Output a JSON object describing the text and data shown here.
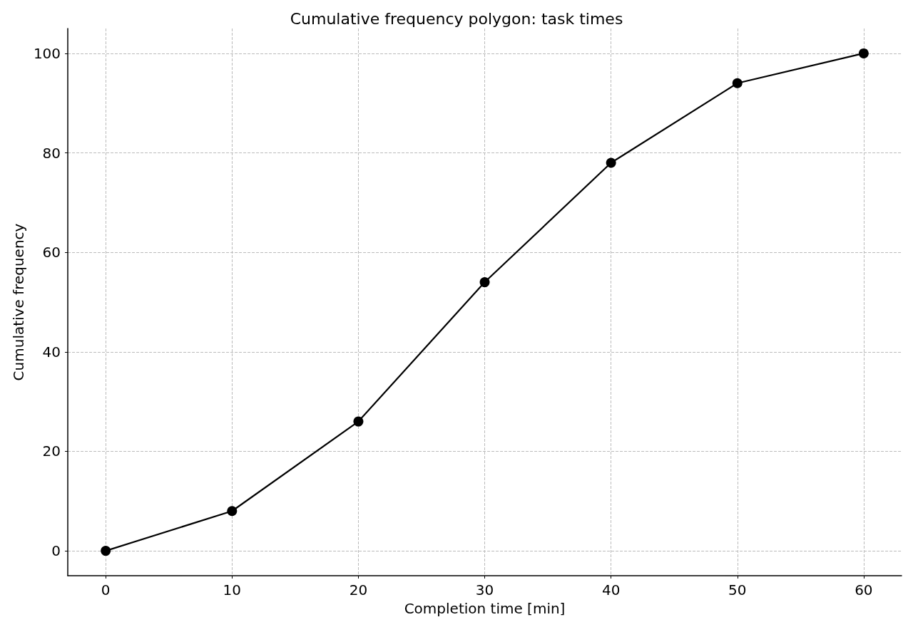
{
  "chart_data": {
    "type": "line",
    "title": "Cumulative frequency polygon: task times",
    "xlabel": "Completion time [min]",
    "ylabel": "Cumulative frequency",
    "x": [
      0,
      10,
      20,
      30,
      40,
      50,
      60
    ],
    "series": [
      {
        "color": "#000000",
        "values": [
          0,
          8,
          26,
          54,
          78,
          94,
          100
        ]
      }
    ],
    "xlim": [
      -3,
      63
    ],
    "xticks": [
      0,
      10,
      20,
      30,
      40,
      50,
      60
    ],
    "ylim": [
      -5,
      105
    ],
    "yticks": [
      0,
      20,
      40,
      60,
      80,
      100
    ],
    "grid": true,
    "marker": "circle",
    "line_style": "solid"
  }
}
